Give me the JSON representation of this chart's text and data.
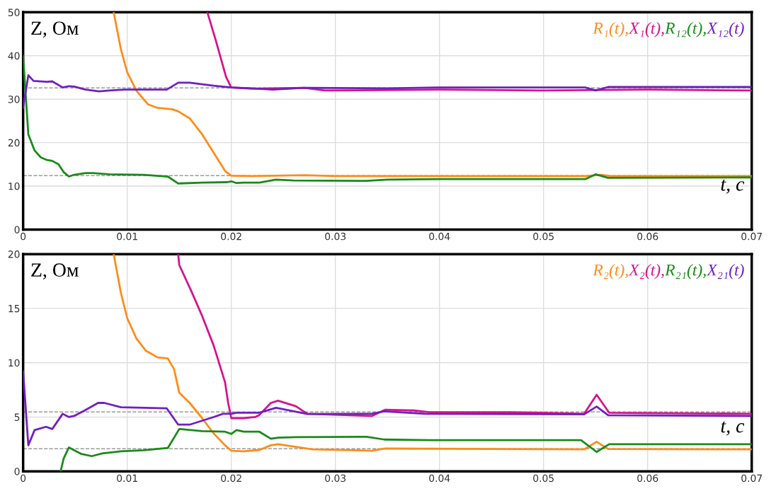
{
  "chart_data": [
    {
      "type": "line",
      "xlabel": "t, с",
      "ylabel": "Z, Ом",
      "xlim": [
        0,
        0.07
      ],
      "xticks": [
        0,
        0.01,
        0.02,
        0.03,
        0.04,
        0.05,
        0.06,
        0.07
      ],
      "ylim": [
        0,
        50
      ],
      "yticks": [
        0,
        10,
        20,
        30,
        40,
        50
      ],
      "grid": true,
      "legend": "top right",
      "line_style": "solid",
      "ref_lines": [
        {
          "axis": "y",
          "value": 32.6,
          "color": "#999999",
          "line_style": "dashed"
        },
        {
          "axis": "y",
          "value": 12.4,
          "color": "#999999",
          "line_style": "dashed"
        }
      ],
      "series": [
        {
          "name": "R₁(t),",
          "color": "#ff8c1a",
          "x": [
            0.0087,
            0.0094,
            0.01,
            0.0109,
            0.012,
            0.0129,
            0.0143,
            0.0149,
            0.016,
            0.0172,
            0.0183,
            0.0194,
            0.02,
            0.022,
            0.027,
            0.03,
            0.04,
            0.054,
            0.0555,
            0.0565,
            0.07
          ],
          "values": [
            50,
            41.4,
            36.2,
            31.9,
            28.8,
            28,
            27.7,
            27.2,
            25.6,
            21.9,
            17.7,
            13.5,
            12.4,
            12.3,
            12.5,
            12.3,
            12.3,
            12.3,
            12.6,
            12.3,
            12.3
          ]
        },
        {
          "name": "X₁(t),",
          "color": "#d4148c",
          "x": [
            0.0177,
            0.0185,
            0.0195,
            0.02,
            0.022,
            0.027,
            0.029,
            0.04,
            0.05,
            0.06,
            0.07
          ],
          "values": [
            50,
            43.6,
            35.1,
            32.7,
            32.4,
            32.6,
            32.0,
            32.2,
            32.0,
            32.2,
            32.0
          ]
        },
        {
          "name": "R₁₂(t),",
          "color": "#1a8a1a",
          "x": [
            0,
            0.0005,
            0.0011,
            0.0017,
            0.0023,
            0.0028,
            0.0034,
            0.0039,
            0.0044,
            0.0049,
            0.006,
            0.0067,
            0.0083,
            0.0116,
            0.0139,
            0.0149,
            0.0172,
            0.0196,
            0.02,
            0.0205,
            0.0212,
            0.0227,
            0.0243,
            0.026,
            0.033,
            0.035,
            0.04,
            0.054,
            0.055,
            0.0562,
            0.07
          ],
          "values": [
            39.9,
            21.9,
            18.2,
            16.6,
            16,
            15.8,
            15,
            13.2,
            12.2,
            12.6,
            13,
            13,
            12.7,
            12.6,
            12.2,
            10.6,
            10.8,
            10.9,
            11.1,
            10.7,
            10.8,
            10.8,
            11.5,
            11.3,
            11.2,
            11.5,
            11.6,
            11.6,
            12.7,
            11.9,
            12.0
          ]
        },
        {
          "name": "X₁₂(t)",
          "color": "#7020c0",
          "x": [
            0,
            0.0005,
            0.001,
            0.0023,
            0.0028,
            0.0038,
            0.0044,
            0.0049,
            0.006,
            0.0073,
            0.0083,
            0.0098,
            0.0138,
            0.0149,
            0.016,
            0.0183,
            0.02,
            0.022,
            0.024,
            0.027,
            0.035,
            0.04,
            0.054,
            0.055,
            0.0562,
            0.07
          ],
          "values": [
            28,
            35.5,
            34.2,
            34,
            34.1,
            32.7,
            33,
            32.9,
            32.2,
            31.8,
            32,
            32.2,
            32.2,
            33.8,
            33.8,
            33.1,
            32.7,
            32.5,
            32.2,
            32.6,
            32.5,
            32.7,
            32.7,
            32.0,
            32.8,
            32.8
          ]
        }
      ]
    },
    {
      "type": "line",
      "xlabel": "t, с",
      "ylabel": "Z, Ом",
      "xlim": [
        0,
        0.07
      ],
      "xticks": [
        0,
        0.01,
        0.02,
        0.03,
        0.04,
        0.05,
        0.06,
        0.07
      ],
      "ylim": [
        0,
        20
      ],
      "yticks": [
        0,
        5,
        10,
        15,
        20
      ],
      "grid": true,
      "legend": "top right",
      "line_style": "solid",
      "ref_lines": [
        {
          "axis": "y",
          "value": 5.47,
          "color": "#999999",
          "line_style": "dashed"
        },
        {
          "axis": "y",
          "value": 2.08,
          "color": "#999999",
          "line_style": "dashed"
        }
      ],
      "series": [
        {
          "name": "R₂(t),",
          "color": "#ff8c1a",
          "x": [
            0.0087,
            0.0094,
            0.01,
            0.0109,
            0.0118,
            0.0129,
            0.0139,
            0.0145,
            0.015,
            0.016,
            0.0172,
            0.0183,
            0.0194,
            0.02,
            0.0212,
            0.0227,
            0.0238,
            0.0245,
            0.0278,
            0.0335,
            0.0348,
            0.0539,
            0.0551,
            0.0562,
            0.07
          ],
          "values": [
            20,
            16.4,
            14.1,
            12.2,
            11.1,
            10.5,
            10.4,
            9.4,
            7.25,
            6.3,
            4.9,
            3.5,
            2.4,
            1.9,
            1.85,
            1.97,
            2.4,
            2.5,
            2.02,
            1.9,
            2.1,
            2.02,
            2.73,
            2.06,
            2.02
          ]
        },
        {
          "name": "X₂(t),",
          "color": "#d4148c",
          "x": [
            0.0149,
            0.015,
            0.0162,
            0.0172,
            0.0183,
            0.0194,
            0.0197,
            0.02,
            0.0212,
            0.0223,
            0.0227,
            0.0238,
            0.0245,
            0.0262,
            0.0273,
            0.0335,
            0.0348,
            0.0376,
            0.039,
            0.0468,
            0.0539,
            0.0551,
            0.0563,
            0.07
          ],
          "values": [
            20,
            19,
            16.5,
            14.3,
            11.6,
            8.2,
            6.3,
            4.9,
            4.9,
            5.0,
            5.2,
            6.3,
            6.5,
            6.0,
            5.3,
            5.1,
            5.68,
            5.6,
            5.45,
            5.45,
            5.3,
            7.05,
            5.4,
            5.3
          ]
        },
        {
          "name": "R₂₁(t),",
          "color": "#1a8a1a",
          "x": [
            0.0036,
            0.0039,
            0.0044,
            0.0056,
            0.0066,
            0.0076,
            0.0094,
            0.0116,
            0.0139,
            0.015,
            0.0172,
            0.0194,
            0.02,
            0.0205,
            0.0212,
            0.0227,
            0.0238,
            0.0245,
            0.0262,
            0.033,
            0.0347,
            0.039,
            0.0536,
            0.0551,
            0.0563,
            0.07
          ],
          "values": [
            0,
            1.2,
            2.2,
            1.6,
            1.4,
            1.65,
            1.85,
            1.95,
            2.15,
            3.9,
            3.7,
            3.65,
            3.45,
            3.8,
            3.65,
            3.65,
            3.0,
            3.1,
            3.15,
            3.18,
            2.93,
            2.87,
            2.87,
            1.79,
            2.5,
            2.5
          ]
        },
        {
          "name": "X₂₁(t)",
          "color": "#7020c0",
          "x": [
            0,
            0.0005,
            0.0011,
            0.0022,
            0.0028,
            0.0038,
            0.0044,
            0.0049,
            0.0059,
            0.0072,
            0.0078,
            0.0094,
            0.0138,
            0.0149,
            0.016,
            0.0183,
            0.0192,
            0.02,
            0.0205,
            0.0227,
            0.0243,
            0.0273,
            0.0335,
            0.0347,
            0.0386,
            0.0539,
            0.0551,
            0.0562,
            0.07
          ],
          "values": [
            9.2,
            2.4,
            3.8,
            4.1,
            3.9,
            5.3,
            5.0,
            5.1,
            5.6,
            6.3,
            6.3,
            5.9,
            5.8,
            4.3,
            4.3,
            5.0,
            5.3,
            5.3,
            5.4,
            5.4,
            5.85,
            5.28,
            5.3,
            5.53,
            5.3,
            5.25,
            5.97,
            5.17,
            5.1
          ]
        }
      ]
    }
  ]
}
